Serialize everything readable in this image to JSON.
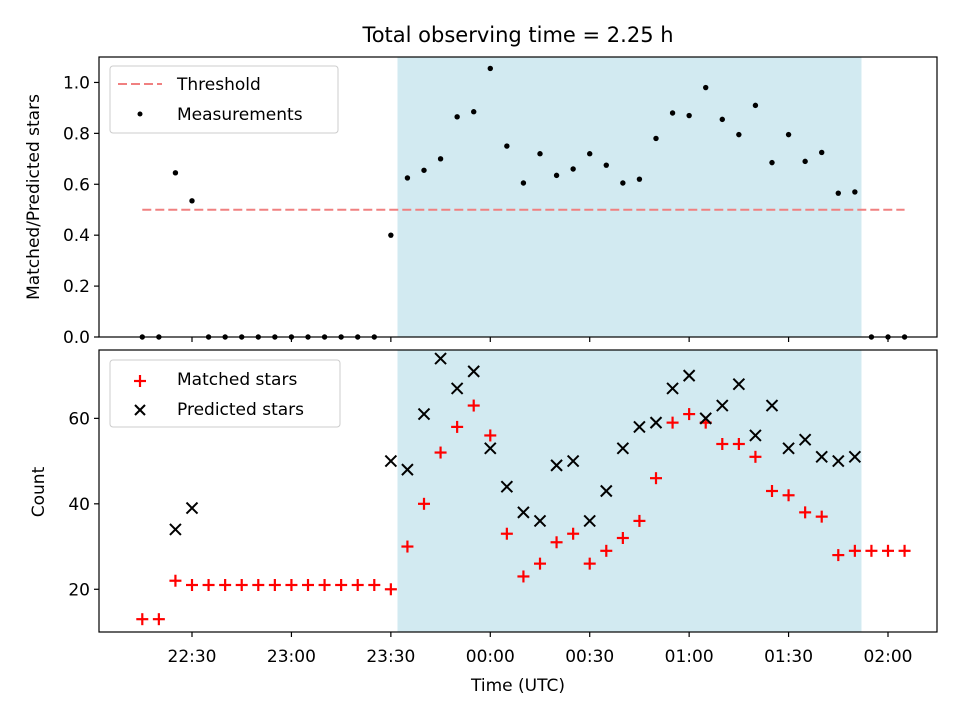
{
  "chart_data": [
    {
      "type": "scatter",
      "title": "Total observing time = 2.25 h",
      "ylabel": "Matched/Predicted stars",
      "xlabel": "",
      "ylim": [
        0,
        1.1
      ],
      "yticks": [
        "0.0",
        "0.2",
        "0.4",
        "0.6",
        "0.8",
        "1.0"
      ],
      "shaded_interval": [
        "23:32",
        "01:52"
      ],
      "shade_color": "#add8e6",
      "threshold": {
        "name": "Threshold",
        "value": 0.5,
        "x_start": "22:15",
        "x_end": "02:05",
        "color": "#f08080"
      },
      "legend": {
        "placement": "upper-left",
        "entries": [
          "Threshold",
          "Measurements"
        ]
      },
      "series": [
        {
          "name": "Measurements",
          "marker": "dot",
          "color": "#000000",
          "x": [
            "22:15",
            "22:20",
            "22:25",
            "22:30",
            "22:35",
            "22:40",
            "22:45",
            "22:50",
            "22:55",
            "23:00",
            "23:05",
            "23:10",
            "23:15",
            "23:20",
            "23:25",
            "23:30",
            "23:35",
            "23:40",
            "23:45",
            "23:50",
            "23:55",
            "00:00",
            "00:05",
            "00:10",
            "00:15",
            "00:20",
            "00:25",
            "00:30",
            "00:35",
            "00:40",
            "00:45",
            "00:50",
            "00:55",
            "01:00",
            "01:05",
            "01:10",
            "01:15",
            "01:20",
            "01:25",
            "01:30",
            "01:35",
            "01:40",
            "01:45",
            "01:50",
            "01:55",
            "02:00",
            "02:05"
          ],
          "y": [
            0,
            0,
            0.645,
            0.535,
            0,
            0,
            0,
            0,
            0,
            0,
            0,
            0,
            0,
            0,
            0,
            0.4,
            0.625,
            0.655,
            0.7,
            0.865,
            0.885,
            1.055,
            0.75,
            0.605,
            0.72,
            0.635,
            0.66,
            0.72,
            0.675,
            0.605,
            0.62,
            0.78,
            0.88,
            0.87,
            0.98,
            0.855,
            0.795,
            0.91,
            0.685,
            0.795,
            0.69,
            0.725,
            0.565,
            0.57,
            0,
            0,
            0
          ]
        }
      ]
    },
    {
      "type": "scatter",
      "title": "",
      "ylabel": "Count",
      "xlabel": "Time (UTC)",
      "ylim": [
        10,
        76
      ],
      "yticks": [
        "20",
        "40",
        "60"
      ],
      "xticks": [
        "22:30",
        "23:00",
        "23:30",
        "00:00",
        "00:30",
        "01:00",
        "01:30",
        "02:00"
      ],
      "shaded_interval": [
        "23:32",
        "01:52"
      ],
      "shade_color": "#add8e6",
      "legend": {
        "placement": "upper-left",
        "entries": [
          "Matched stars",
          "Predicted stars"
        ]
      },
      "series": [
        {
          "name": "Matched stars",
          "marker": "plus",
          "color": "#ff0000",
          "x": [
            "22:15",
            "22:20",
            "22:25",
            "22:30",
            "22:35",
            "22:40",
            "22:45",
            "22:50",
            "22:55",
            "23:00",
            "23:05",
            "23:10",
            "23:15",
            "23:20",
            "23:25",
            "23:30",
            "23:35",
            "23:40",
            "23:45",
            "23:50",
            "23:55",
            "00:00",
            "00:05",
            "00:10",
            "00:15",
            "00:20",
            "00:25",
            "00:30",
            "00:35",
            "00:40",
            "00:45",
            "00:50",
            "00:55",
            "01:00",
            "01:05",
            "01:10",
            "01:15",
            "01:20",
            "01:25",
            "01:30",
            "01:35",
            "01:40",
            "01:45",
            "01:50",
            "01:55",
            "02:00",
            "02:05"
          ],
          "y": [
            13,
            13,
            22,
            21,
            21,
            21,
            21,
            21,
            21,
            21,
            21,
            21,
            21,
            21,
            21,
            20,
            30,
            40,
            52,
            58,
            63,
            56,
            33,
            23,
            26,
            31,
            33,
            26,
            29,
            32,
            36,
            46,
            59,
            61,
            59,
            54,
            54,
            51,
            43,
            42,
            38,
            37,
            28,
            29,
            29,
            29,
            29
          ]
        },
        {
          "name": "Predicted stars",
          "marker": "x",
          "color": "#000000",
          "x": [
            "22:25",
            "22:30",
            "23:30",
            "23:35",
            "23:40",
            "23:45",
            "23:50",
            "23:55",
            "00:00",
            "00:05",
            "00:10",
            "00:15",
            "00:20",
            "00:25",
            "00:30",
            "00:35",
            "00:40",
            "00:45",
            "00:50",
            "00:55",
            "01:00",
            "01:05",
            "01:10",
            "01:15",
            "01:20",
            "01:25",
            "01:30",
            "01:35",
            "01:40",
            "01:45",
            "01:50"
          ],
          "y": [
            34,
            39,
            50,
            48,
            61,
            74,
            67,
            71,
            53,
            44,
            38,
            36,
            49,
            50,
            36,
            43,
            53,
            58,
            59,
            67,
            70,
            60,
            63,
            68,
            56,
            63,
            53,
            55,
            51,
            50,
            51
          ]
        }
      ]
    }
  ]
}
